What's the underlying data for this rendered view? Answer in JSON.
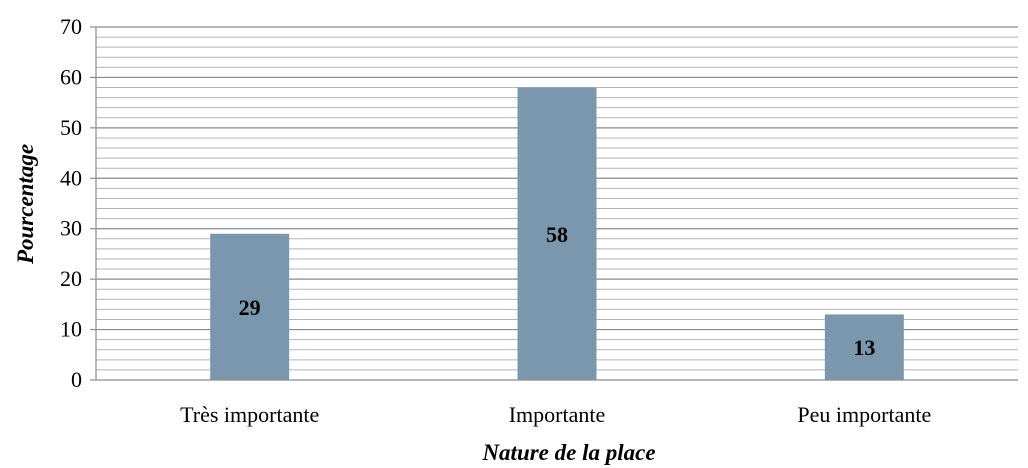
{
  "chart_data": {
    "type": "bar",
    "title": "",
    "xlabel": "Nature de la place",
    "ylabel": "Pourcentage",
    "categories": [
      "Très importante",
      "Importante",
      "Peu importante"
    ],
    "values": [
      29,
      58,
      13
    ],
    "data_labels": [
      "29",
      "58",
      "13"
    ],
    "ylim": [
      0,
      70
    ],
    "yticks": [
      "0",
      "10",
      "20",
      "30",
      "40",
      "50",
      "60",
      "70"
    ],
    "grid": true,
    "legend": "none",
    "colors": {
      "bar": "#7a97ad",
      "grid": "#8c8c8c",
      "axis": "#8c8c8c"
    }
  }
}
